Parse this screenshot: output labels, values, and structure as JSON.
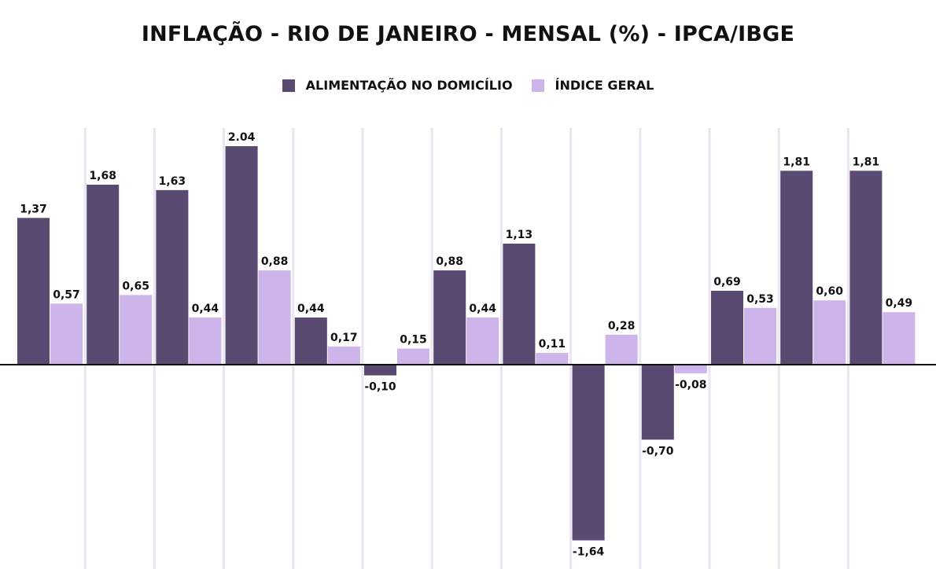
{
  "chart_data": {
    "type": "bar",
    "title": "INFLAÇÃO - RIO DE JANEIRO - MENSAL (%) - IPCA/IBGE",
    "xlabel": "",
    "ylabel": "",
    "categories": [
      "",
      "",
      "",
      "",
      "",
      "",
      "",
      "",
      "",
      "",
      "",
      "",
      ""
    ],
    "series": [
      {
        "name": "ALIMENTAÇÃO NO DOMICÍLIO",
        "color": "#5a4a72",
        "values": [
          1.37,
          1.68,
          1.63,
          2.04,
          0.44,
          -0.1,
          0.88,
          1.13,
          -1.64,
          -0.7,
          0.69,
          1.81,
          1.81
        ],
        "labels": [
          "1,37",
          "1,68",
          "1,63",
          "2.04",
          "0,44",
          "-0,10",
          "0,88",
          "1,13",
          "-1,64",
          "-0,70",
          "0,69",
          "1,81",
          "1,81"
        ]
      },
      {
        "name": "ÍNDICE GERAL",
        "color": "#cdb4ea",
        "values": [
          0.57,
          0.65,
          0.44,
          0.88,
          0.17,
          0.15,
          0.44,
          0.11,
          0.28,
          -0.08,
          0.53,
          0.6,
          0.49
        ],
        "labels": [
          "0,57",
          "0,65",
          "0,44",
          "0,88",
          "0,17",
          "0,15",
          "0,44",
          "0,11",
          "0,28",
          "-0,08",
          "0,53",
          "0,60",
          "0,49"
        ]
      }
    ],
    "ylim": [
      -1.9,
      2.1
    ],
    "grid": "vertical",
    "legend": "top-center"
  }
}
